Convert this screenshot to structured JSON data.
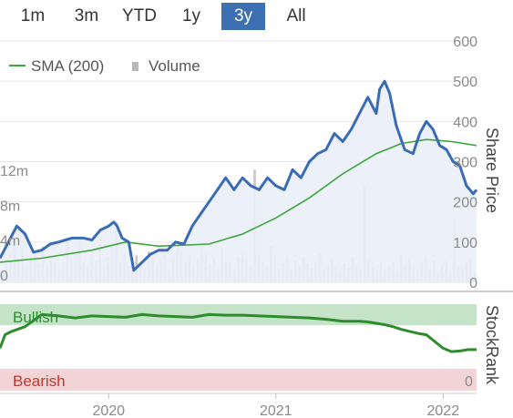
{
  "range_tabs": {
    "items": [
      "1m",
      "3m",
      "YTD",
      "1y",
      "3y",
      "All"
    ],
    "active": "3y",
    "active_color": "#3d6fb3"
  },
  "legend": {
    "sma_label": "SMA (200)",
    "volume_label": "Volume"
  },
  "colors": {
    "price": "#3a6bb5",
    "sma": "#3ea63e",
    "volume": "#c8c8c8",
    "bullish_band": "#c4e3c9",
    "bearish_band": "#f3d4d6",
    "bullish_text": "#2f8f2f",
    "bearish_text": "#c0392b",
    "stockrank": "#2e8b2e"
  },
  "chart_data": {
    "type": "line",
    "x_ticks": [
      "2020",
      "2021",
      "2022"
    ],
    "price_axis": {
      "label": "Share Price",
      "ticks": [
        0,
        100,
        200,
        300,
        400,
        500,
        600
      ],
      "ylim": [
        0,
        600
      ]
    },
    "volume_axis": {
      "ticks": [
        "0",
        "4m",
        "8m",
        "12m"
      ],
      "values": [
        0,
        4,
        8,
        12
      ],
      "unit": "m"
    },
    "series": [
      {
        "name": "SMA (200)",
        "x": [
          2019.35,
          2019.6,
          2019.9,
          2020.1,
          2020.3,
          2020.6,
          2020.8,
          2021.0,
          2021.2,
          2021.4,
          2021.6,
          2021.75,
          2021.9,
          2022.05,
          2022.2
        ],
        "values": [
          50,
          60,
          80,
          100,
          90,
          95,
          120,
          160,
          210,
          270,
          320,
          345,
          355,
          350,
          340
        ]
      },
      {
        "name": "Price",
        "x": [
          2019.35,
          2019.45,
          2019.5,
          2019.55,
          2019.6,
          2019.65,
          2019.7,
          2019.78,
          2019.85,
          2019.9,
          2019.95,
          2020.0,
          2020.03,
          2020.05,
          2020.08,
          2020.12,
          2020.15,
          2020.2,
          2020.25,
          2020.3,
          2020.35,
          2020.4,
          2020.45,
          2020.5,
          2020.55,
          2020.6,
          2020.65,
          2020.7,
          2020.75,
          2020.8,
          2020.85,
          2020.9,
          2020.95,
          2021.0,
          2021.05,
          2021.1,
          2021.15,
          2021.2,
          2021.25,
          2021.3,
          2021.35,
          2021.4,
          2021.45,
          2021.5,
          2021.55,
          2021.6,
          2021.62,
          2021.65,
          2021.68,
          2021.72,
          2021.77,
          2021.82,
          2021.86,
          2021.9,
          2021.94,
          2021.98,
          2022.02,
          2022.06,
          2022.1,
          2022.14,
          2022.18,
          2022.2
        ],
        "values": [
          60,
          140,
          120,
          75,
          80,
          95,
          100,
          110,
          110,
          105,
          130,
          140,
          150,
          140,
          110,
          100,
          30,
          50,
          70,
          80,
          80,
          100,
          95,
          140,
          170,
          200,
          230,
          260,
          230,
          260,
          240,
          230,
          260,
          240,
          230,
          280,
          260,
          300,
          320,
          330,
          370,
          350,
          380,
          420,
          460,
          420,
          480,
          500,
          470,
          390,
          330,
          320,
          370,
          400,
          380,
          340,
          330,
          300,
          290,
          240,
          220,
          230
        ]
      }
    ],
    "volume_millions": [
      1.2,
      2.8,
      3.5,
      4.6,
      2.4,
      3.9,
      1.6,
      2.9,
      3.4,
      2.1,
      4.1,
      1.9,
      2.6,
      3.1,
      1.5,
      2.2,
      5.1,
      2.7,
      3.6,
      4.8,
      2.3,
      1.8,
      3.2,
      2.5,
      4.4,
      1.7,
      2.9,
      3.8,
      6.9,
      2.4,
      3.3,
      1.9,
      2.8,
      3.1,
      2.2,
      1.6,
      3.5,
      2.9,
      1.8,
      2.5,
      3.2,
      1.4,
      2.7,
      4.1,
      3.6,
      2.3,
      3.0,
      1.9,
      2.6,
      4.7,
      3.3,
      2.1,
      2.8,
      1.7,
      3.9,
      2.2,
      2.4,
      1.5,
      2.9,
      3.4,
      2.6,
      1.8,
      12.9,
      3.1,
      2.3,
      1.9,
      4.2,
      2.7,
      1.6,
      2.2,
      3.0,
      1.4,
      2.5,
      1.8,
      2.9,
      2.1,
      1.6,
      2.4,
      3.3,
      1.5,
      2.0,
      2.7,
      1.8,
      1.3,
      2.2,
      1.6,
      2.9,
      1.9,
      1.4,
      11.1,
      2.6,
      1.7,
      1.2,
      2.3,
      1.5,
      1.9,
      2.4,
      1.3,
      3.1,
      2.0,
      2.8,
      1.7,
      1.4,
      2.2,
      3.0,
      1.6,
      2.5,
      1.1,
      1.8,
      2.4,
      1.3,
      7.4,
      1.9,
      1.5,
      2.2,
      2.8,
      1.2
    ],
    "stockrank": {
      "label": "StockRank",
      "bands": [
        "Bullish",
        "Bearish"
      ],
      "zero_label": "0",
      "x": [
        2019.35,
        2019.38,
        2019.42,
        2019.5,
        2019.6,
        2019.7,
        2019.8,
        2019.9,
        2020.0,
        2020.1,
        2020.2,
        2020.3,
        2020.4,
        2020.5,
        2020.6,
        2020.7,
        2020.8,
        2020.9,
        2021.0,
        2021.1,
        2021.2,
        2021.3,
        2021.4,
        2021.5,
        2021.55,
        2021.6,
        2021.65,
        2021.7,
        2021.75,
        2021.8,
        2021.85,
        2021.9,
        2021.95,
        2022.0,
        2022.05,
        2022.1,
        2022.15,
        2022.2
      ],
      "values": [
        40,
        60,
        65,
        72,
        90,
        88,
        85,
        88,
        87,
        86,
        90,
        88,
        87,
        86,
        90,
        89,
        89,
        88,
        87,
        86,
        85,
        83,
        80,
        80,
        79,
        77,
        75,
        72,
        68,
        65,
        62,
        60,
        50,
        40,
        35,
        36,
        38,
        38
      ]
    }
  }
}
